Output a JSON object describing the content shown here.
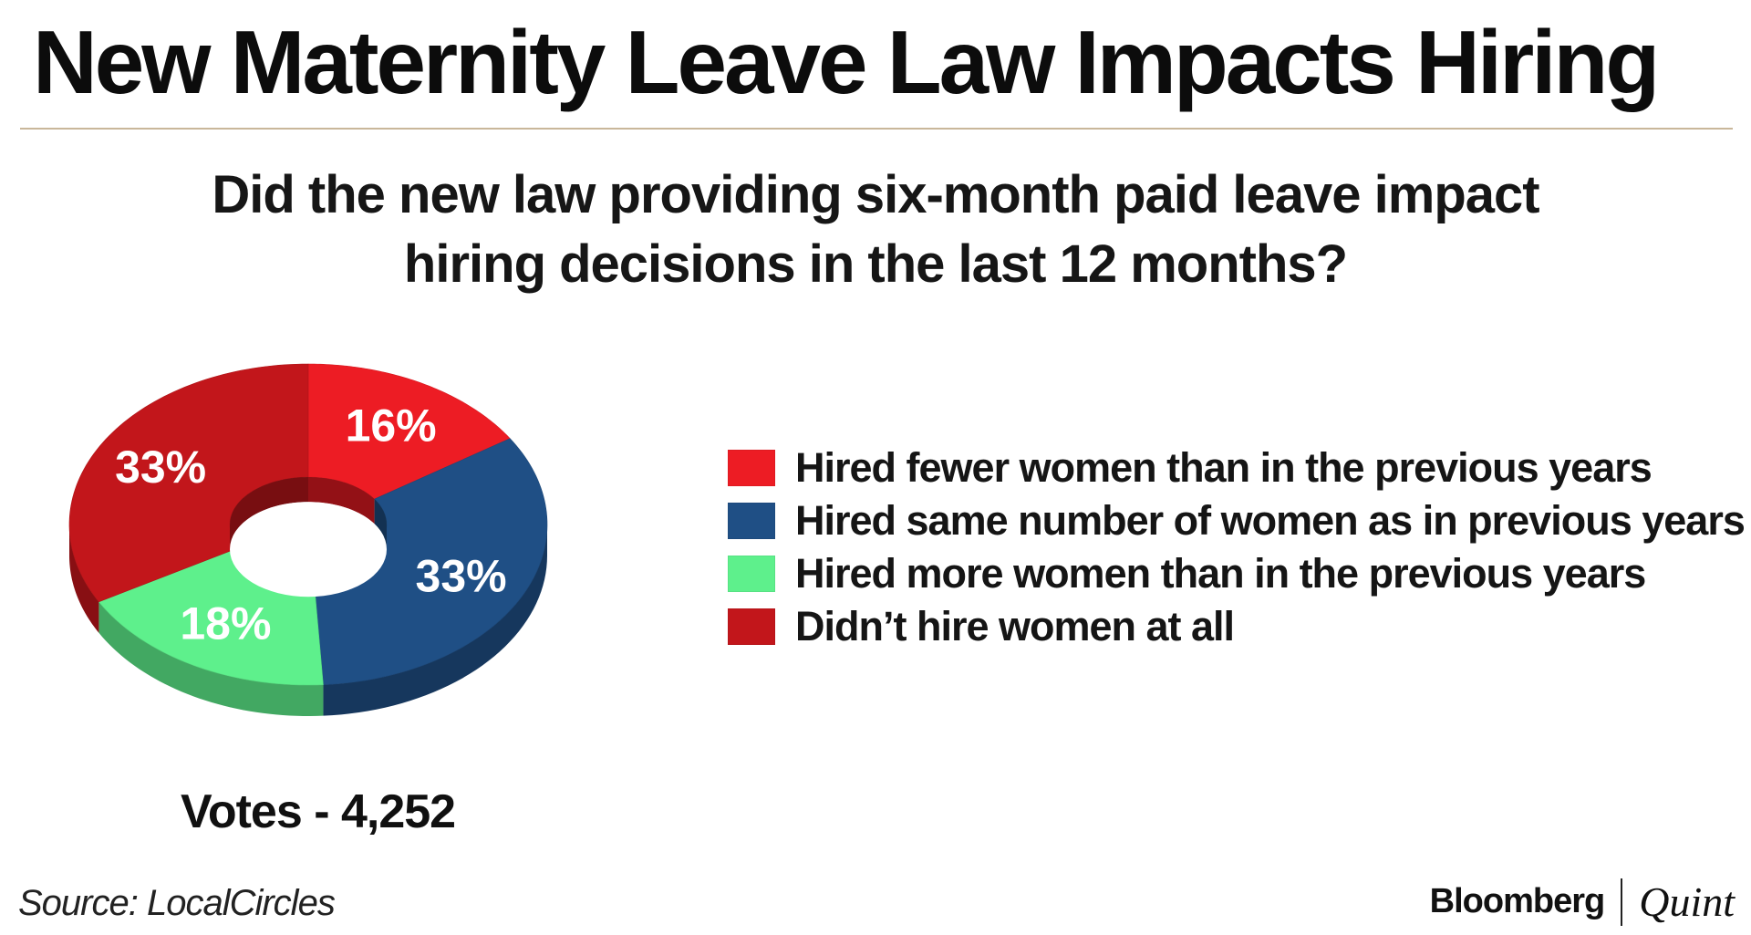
{
  "header": {
    "title": "New Maternity Leave Law Impacts Hiring"
  },
  "question": {
    "line1": "Did the new law providing six-month paid leave impact",
    "line2": "hiring decisions in the last 12 months?"
  },
  "chart_data": {
    "type": "pie",
    "variant": "donut-3d",
    "title": "Did the new law providing six-month paid leave impact hiring decisions in the last 12 months?",
    "unit": "%",
    "categories": [
      "Hired fewer women than in the previous years",
      "Hired same number of women as in previous years",
      "Hired more women than in the previous years",
      "Didn’t hire women at all"
    ],
    "values": [
      16,
      33,
      18,
      33
    ],
    "labels": [
      "16%",
      "33%",
      "18%",
      "33%"
    ],
    "colors": [
      "#ed1c24",
      "#1f4f85",
      "#5ef08c",
      "#c2161b"
    ],
    "legend_position": "right"
  },
  "votes": {
    "text": "Votes - 4,252"
  },
  "footer": {
    "source": "Source: LocalCircles",
    "brand_primary": "Bloomberg",
    "brand_secondary": "Quint"
  }
}
